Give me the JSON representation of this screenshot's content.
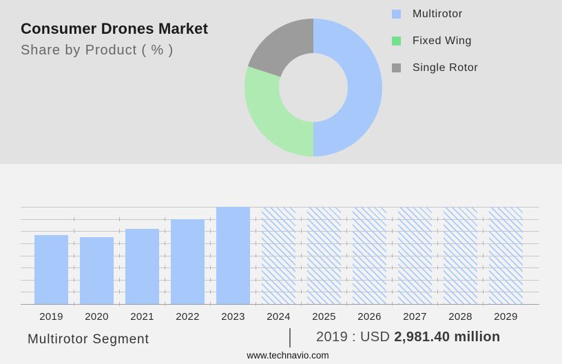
{
  "header": {
    "title": "Consumer Drones Market",
    "subtitle": "Share by Product ( % )"
  },
  "legend": {
    "items": [
      {
        "label": "Multirotor",
        "color": "#a4c3f9",
        "icon": "blue-square-swatch"
      },
      {
        "label": "Fixed Wing",
        "color": "#74e08e",
        "icon": "green-square-swatch"
      },
      {
        "label": "Single Rotor",
        "color": "#9a9a9a",
        "icon": "gray-square-swatch"
      }
    ]
  },
  "chart_data": [
    {
      "type": "pie",
      "title": "Consumer Drones Market Share by Product ( % )",
      "labels": [
        "Multirotor",
        "Fixed Wing",
        "Single Rotor"
      ],
      "values": [
        50,
        30,
        20
      ],
      "values_note": "estimated from arc angles; no numeric labels shown in image",
      "colors": [
        "#a6c8fa",
        "#b0eab3",
        "#9c9c9c"
      ],
      "donut_hole_ratio": 0.5,
      "start_angle_deg": 0,
      "direction": "clockwise",
      "legend_position": "right"
    },
    {
      "type": "bar",
      "categories": [
        "2019",
        "2020",
        "2021",
        "2022",
        "2023",
        "2024",
        "2025",
        "2026",
        "2027",
        "2028",
        "2029"
      ],
      "values": [
        5.7,
        5.5,
        6.2,
        7.0,
        8.0,
        8.0,
        8.0,
        8.0,
        8.0,
        8.0,
        8.0
      ],
      "ylim": [
        0,
        8
      ],
      "y_axis_labels_shown": false,
      "values_note": "relative bar heights in horizontal-gridline units; y axis is unlabeled",
      "bar_color": "#a6c8fa",
      "forecast_categories": [
        "2024",
        "2025",
        "2026",
        "2027",
        "2028",
        "2029"
      ],
      "forecast_style": "diagonal-hatch",
      "gridlines": true,
      "xlabel": "",
      "ylabel": "",
      "annotation": "2019 : USD 2,981.40 million"
    }
  ],
  "footer": {
    "segment_label": "Multirotor Segment",
    "separator": "|",
    "value_label": "2019 : USD",
    "value_amount": "2,981.40 million",
    "website": "www.technavio.com"
  },
  "colors": {
    "top_background": "#e2e2e2",
    "bottom_background": "#f2f2f3",
    "gridline": "#c7c7c9",
    "axis_line": "#9d9da0"
  }
}
